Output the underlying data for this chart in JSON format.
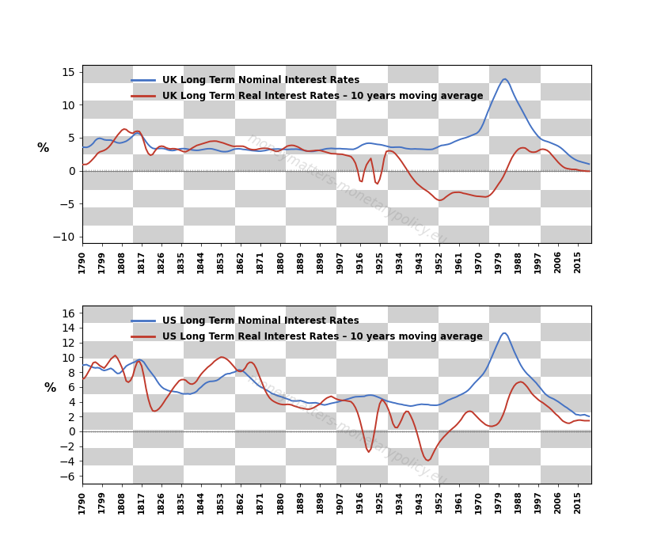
{
  "uk_nominal_label": "UK Long Term Nominal Interest Rates",
  "uk_real_label": "UK Long Term Real Interest Rates – 10 years moving average",
  "us_nominal_label": "US Long Term Nominal Interest Rates",
  "us_real_label": "US Long Term Real Interest Rates – 10 years moving average",
  "nominal_color": "#4472C4",
  "real_color": "#C0392B",
  "ylabel": "%",
  "uk_ylim": [
    -11,
    16
  ],
  "us_ylim": [
    -7,
    17
  ],
  "uk_yticks": [
    -10,
    -5,
    0,
    5,
    10,
    15
  ],
  "us_yticks": [
    -6,
    -4,
    -2,
    0,
    2,
    4,
    6,
    8,
    10,
    12,
    14,
    16
  ],
  "xtick_years": [
    1790,
    1799,
    1808,
    1817,
    1826,
    1835,
    1844,
    1853,
    1862,
    1871,
    1880,
    1889,
    1898,
    1907,
    1916,
    1925,
    1934,
    1943,
    1952,
    1961,
    1970,
    1979,
    1988,
    1997,
    2006,
    2015
  ],
  "watermark": "moneymatters-monetarypolicy.eu",
  "checker_light": "#ffffff",
  "checker_dark": "#d0d0d0",
  "checker_n_cols": 10,
  "checker_n_rows": 10
}
